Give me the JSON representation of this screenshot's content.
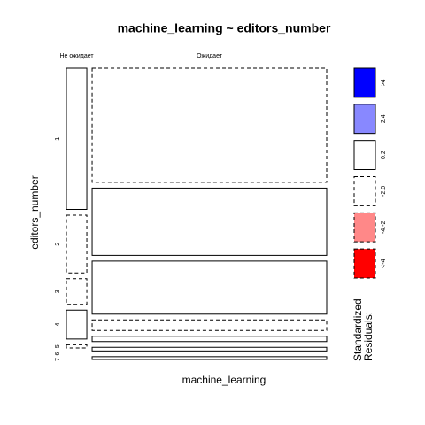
{
  "chart_data": {
    "type": "mosaic",
    "title": "machine_learning ~ editors_number",
    "xlabel": "machine_learning",
    "ylabel": "editors_number",
    "columns": [
      "Не ожидает",
      "Ожидает"
    ],
    "rows": [
      "1",
      "2",
      "3",
      "4",
      "5",
      "6",
      "7"
    ],
    "counts": [
      [
        44,
        18,
        8,
        9,
        1,
        0,
        0
      ],
      [
        409,
        241,
        190,
        38,
        19,
        13,
        10
      ]
    ],
    "shade": [
      [
        2,
        3,
        3,
        2,
        3,
        3,
        3
      ],
      [
        3,
        2,
        2,
        3,
        2,
        2,
        2
      ]
    ],
    "legend": {
      "title_lines": [
        "Standardized",
        "Residuals:"
      ],
      "labels": [
        ">4",
        "2:4",
        "0:2",
        "-2:0",
        "-4:-2",
        "<-4"
      ],
      "colors": [
        "#0000ff",
        "#8888ff",
        "#ffffff",
        "#ffffff",
        "#ff8888",
        "#ff0000"
      ],
      "dashed": [
        false,
        false,
        false,
        true,
        true,
        true
      ]
    }
  }
}
